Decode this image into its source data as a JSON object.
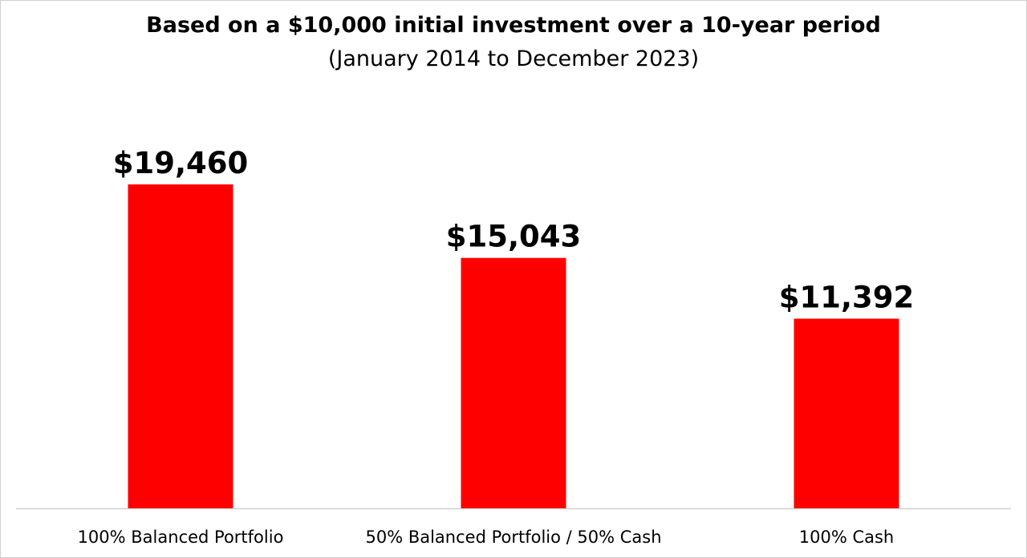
{
  "chart_data": {
    "type": "bar",
    "title": "Based on a $10,000 initial investment over a 10-year period",
    "subtitle": "(January 2014 to December 2023)",
    "categories": [
      "100% Balanced Portfolio",
      "50% Balanced Portfolio / 50% Cash",
      "100% Cash"
    ],
    "values": [
      19460,
      15043,
      11392
    ],
    "data_labels": [
      "$19,460",
      "$15,043",
      "$11,392"
    ],
    "xlabel": "",
    "ylabel": "",
    "ylim": [
      0,
      25000
    ],
    "grid": false,
    "legend": "none",
    "colors": {
      "bar": "#ff0000",
      "baseline": "#d0d0d0"
    }
  }
}
